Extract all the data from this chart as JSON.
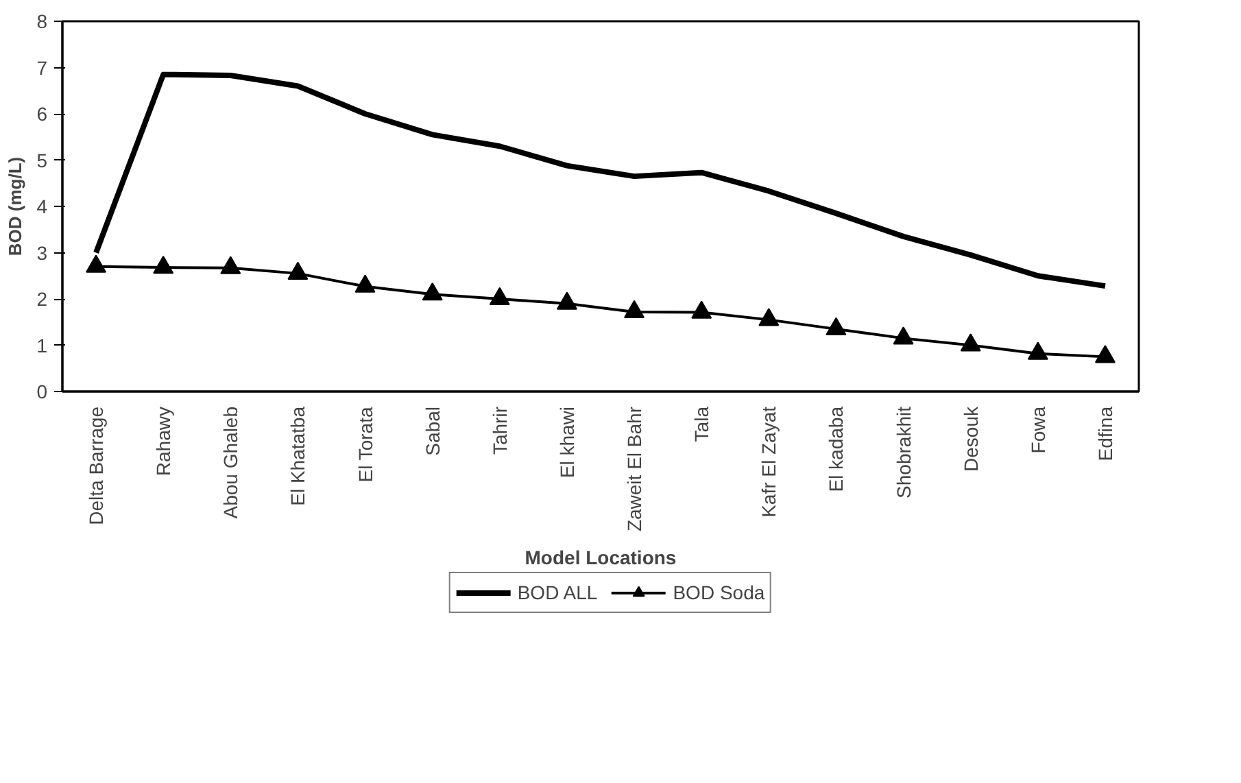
{
  "chart_data": {
    "type": "line",
    "xlabel": "Model Locations",
    "ylabel": "BOD (mg/L)",
    "categories": [
      "Delta Barrage",
      "Rahawy",
      "Abou Ghaleb",
      "El Khatatba",
      "El Torata",
      "Sabal",
      "Tahrir",
      "El khawi",
      "Zaweit El Bahr",
      "Tala",
      "Kafr El Zayat",
      "El kadaba",
      "Shobrakhit",
      "Desouk",
      "Fowa",
      "Edfina"
    ],
    "series": [
      {
        "name": "BOD ALL",
        "color": "#000000",
        "marker": "none",
        "values": [
          3.0,
          6.85,
          6.83,
          6.6,
          6.0,
          5.55,
          5.3,
          4.88,
          4.65,
          4.73,
          4.33,
          3.85,
          3.35,
          2.95,
          2.5,
          2.28
        ]
      },
      {
        "name": "BOD Soda",
        "color": "#000000",
        "marker": "triangle",
        "values": [
          2.7,
          2.68,
          2.67,
          2.55,
          2.27,
          2.1,
          2.0,
          1.9,
          1.72,
          1.71,
          1.55,
          1.35,
          1.15,
          1.0,
          0.82,
          0.75
        ]
      }
    ],
    "ylim": [
      0,
      8
    ],
    "yticks": [
      0,
      1,
      2,
      3,
      4,
      5,
      6,
      7,
      8
    ],
    "grid": false,
    "legend": "bottom"
  }
}
